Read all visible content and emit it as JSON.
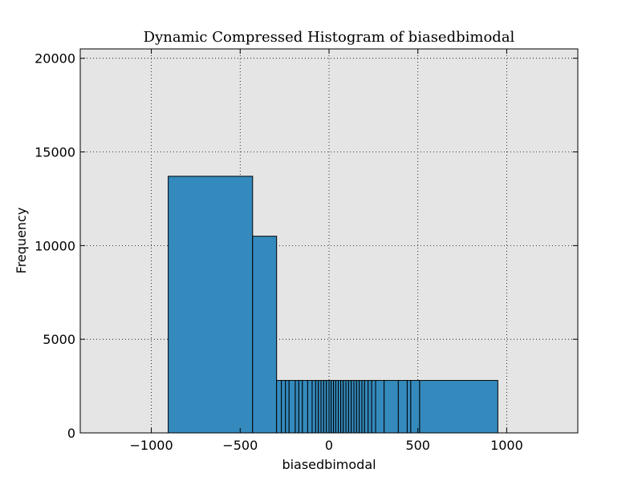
{
  "chart_data": {
    "type": "bar",
    "title": "Dynamic Compressed Histogram of biasedbimodal",
    "xlabel": "biasedbimodal",
    "ylabel": "Frequency",
    "xlim": [
      -1400,
      1400
    ],
    "ylim": [
      0,
      20500
    ],
    "xticks": [
      -1000,
      -500,
      0,
      500,
      1000
    ],
    "xtick_labels": [
      "−1000",
      "−500",
      "0",
      "500",
      "1000"
    ],
    "yticks": [
      0,
      5000,
      10000,
      15000,
      20000
    ],
    "ytick_labels": [
      "0",
      "5000",
      "10000",
      "15000",
      "20000"
    ],
    "grid": true,
    "background": "#e5e5e5",
    "bar_color": "#348abd",
    "edge_color": "#000000",
    "bars": [
      {
        "x0": -905,
        "x1": -430,
        "height": 13700
      },
      {
        "x0": -430,
        "x1": -295,
        "height": 10500
      },
      {
        "x0": -295,
        "x1": -268,
        "height": 2800
      },
      {
        "x0": -268,
        "x1": -245,
        "height": 2800
      },
      {
        "x0": -245,
        "x1": -225,
        "height": 2800
      },
      {
        "x0": -225,
        "x1": -190,
        "height": 2800
      },
      {
        "x0": -190,
        "x1": -170,
        "height": 2800
      },
      {
        "x0": -170,
        "x1": -150,
        "height": 2800
      },
      {
        "x0": -150,
        "x1": -120,
        "height": 2800
      },
      {
        "x0": -120,
        "x1": -95,
        "height": 2800
      },
      {
        "x0": -95,
        "x1": -75,
        "height": 2800
      },
      {
        "x0": -75,
        "x1": -60,
        "height": 2800
      },
      {
        "x0": -60,
        "x1": -45,
        "height": 2800
      },
      {
        "x0": -45,
        "x1": -30,
        "height": 2800
      },
      {
        "x0": -30,
        "x1": -15,
        "height": 2800
      },
      {
        "x0": -15,
        "x1": 0,
        "height": 2800
      },
      {
        "x0": 0,
        "x1": 12,
        "height": 2800
      },
      {
        "x0": 12,
        "x1": 25,
        "height": 2800
      },
      {
        "x0": 25,
        "x1": 38,
        "height": 2800
      },
      {
        "x0": 38,
        "x1": 52,
        "height": 2800
      },
      {
        "x0": 52,
        "x1": 66,
        "height": 2800
      },
      {
        "x0": 66,
        "x1": 80,
        "height": 2800
      },
      {
        "x0": 80,
        "x1": 95,
        "height": 2800
      },
      {
        "x0": 95,
        "x1": 110,
        "height": 2800
      },
      {
        "x0": 110,
        "x1": 125,
        "height": 2800
      },
      {
        "x0": 125,
        "x1": 140,
        "height": 2800
      },
      {
        "x0": 140,
        "x1": 155,
        "height": 2800
      },
      {
        "x0": 155,
        "x1": 170,
        "height": 2800
      },
      {
        "x0": 170,
        "x1": 185,
        "height": 2800
      },
      {
        "x0": 185,
        "x1": 200,
        "height": 2800
      },
      {
        "x0": 200,
        "x1": 220,
        "height": 2800
      },
      {
        "x0": 220,
        "x1": 240,
        "height": 2800
      },
      {
        "x0": 240,
        "x1": 262,
        "height": 2800
      },
      {
        "x0": 262,
        "x1": 310,
        "height": 2800
      },
      {
        "x0": 310,
        "x1": 390,
        "height": 2800
      },
      {
        "x0": 390,
        "x1": 440,
        "height": 2800
      },
      {
        "x0": 440,
        "x1": 460,
        "height": 2800
      },
      {
        "x0": 460,
        "x1": 510,
        "height": 2800
      },
      {
        "x0": 510,
        "x1": 950,
        "height": 2800
      }
    ]
  }
}
